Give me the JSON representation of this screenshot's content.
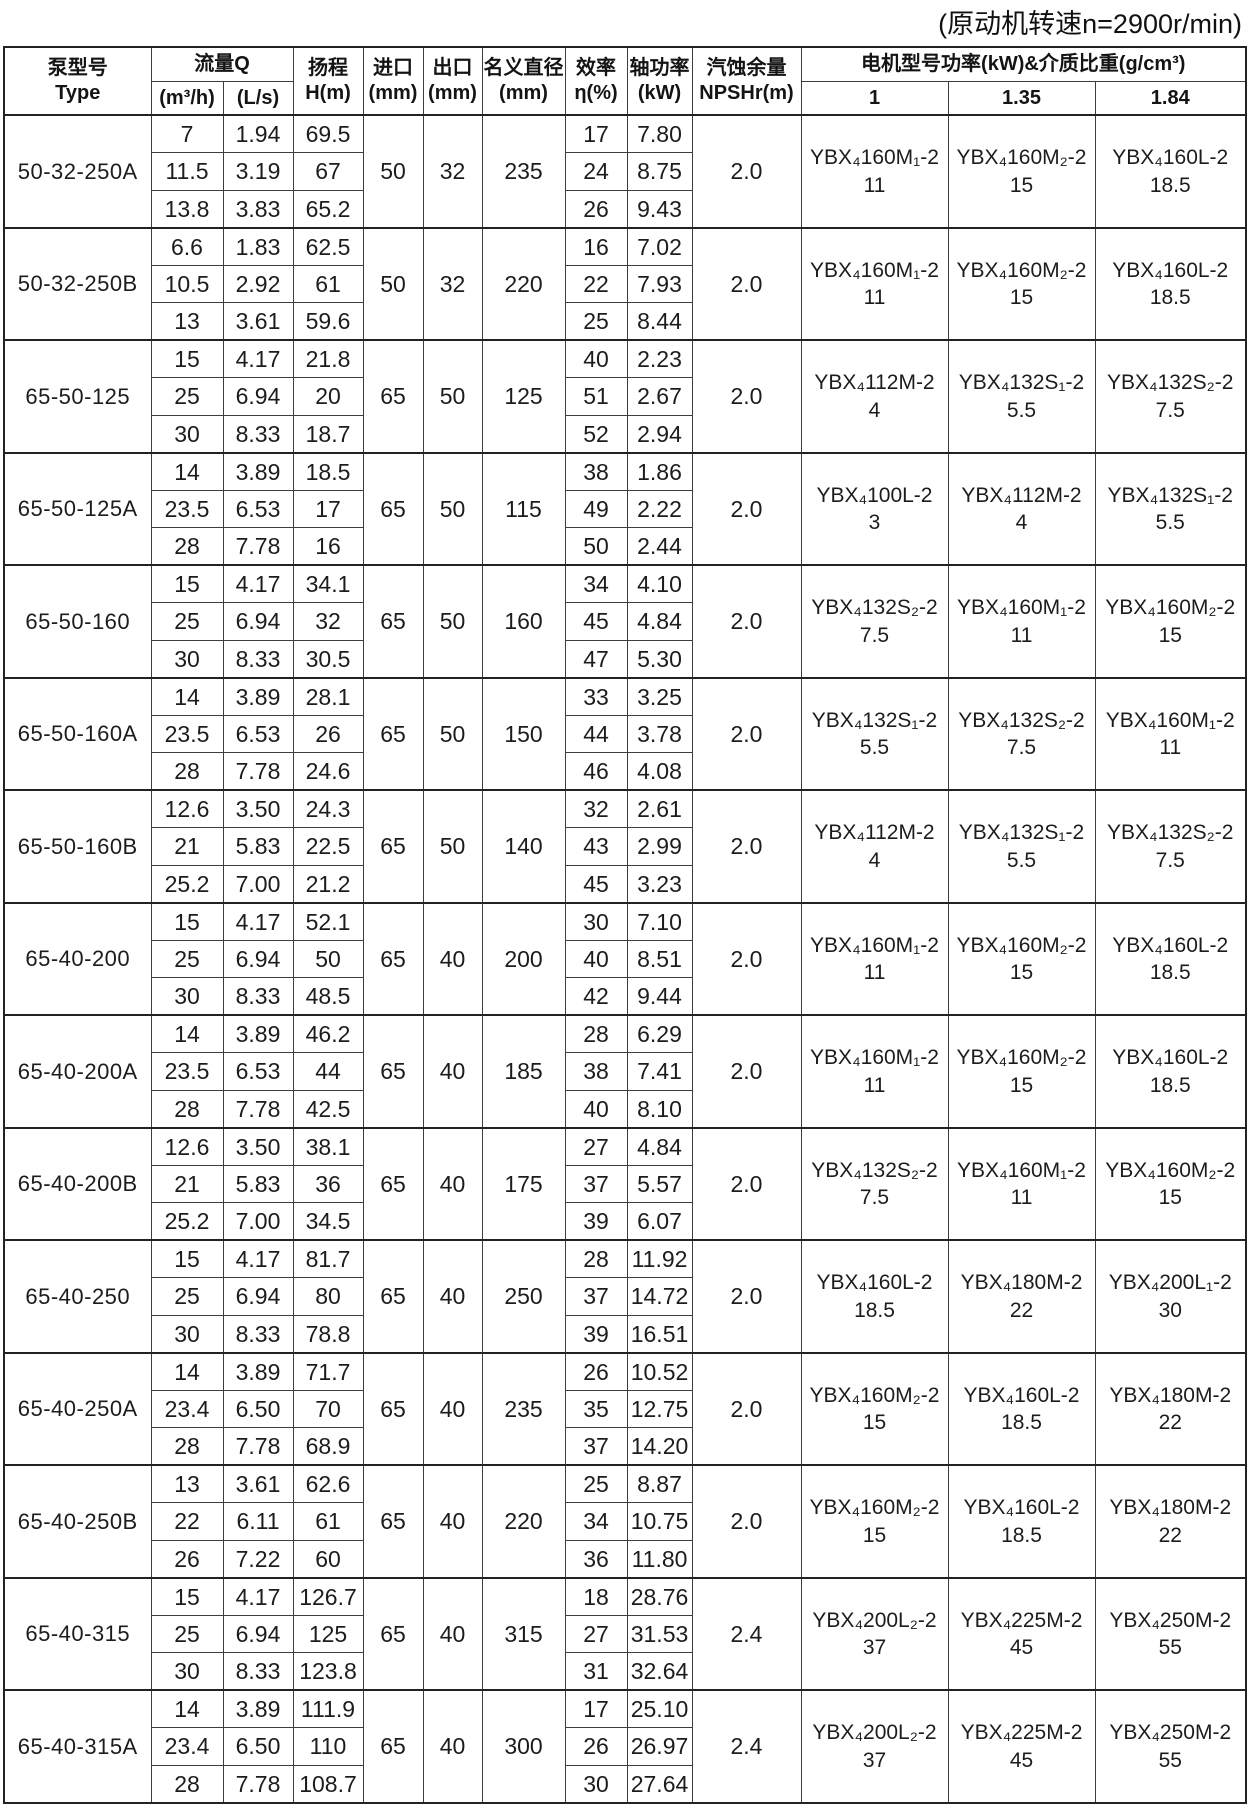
{
  "annotation": "(原动机转速n=2900r/min)",
  "header": {
    "pump_type": "泵型号\nType",
    "flow": {
      "label": "流量Q",
      "unit_m3h": "(m³/h)",
      "unit_ls": "(L/s)"
    },
    "head": "扬程\nH(m)",
    "inlet": "进口\n(mm)",
    "outlet": "出口\n(mm)",
    "nominal_diameter": "名义直径\n(mm)",
    "efficiency": "效率\nη(%)",
    "shaft_power": "轴功率\n(kW)",
    "npsh": "汽蚀余量\nNPSHr(m)",
    "motor": {
      "label": "电机型号功率(kW)&介质比重(g/cm³)",
      "gravity_1": "1",
      "gravity_135": "1.35",
      "gravity_184": "1.84"
    }
  },
  "colors": {
    "background": "#ffffff",
    "text": "#1c1c1c",
    "grid_line": "#3d3d3d",
    "heavy_line": "#222222"
  },
  "groups": [
    {
      "model": "50-32-250A",
      "inlet": "50",
      "outlet": "32",
      "diameter": "235",
      "npshr": "2.0",
      "rows": [
        {
          "m3h": "7",
          "ls": "1.94",
          "h": "69.5",
          "eff": "17",
          "kw": "7.80"
        },
        {
          "m3h": "11.5",
          "ls": "3.19",
          "h": "67",
          "eff": "24",
          "kw": "8.75"
        },
        {
          "m3h": "13.8",
          "ls": "3.83",
          "h": "65.2",
          "eff": "26",
          "kw": "9.43"
        }
      ],
      "motors": [
        {
          "model": "YBX₄160M₁-2",
          "power": "11"
        },
        {
          "model": "YBX₄160M₂-2",
          "power": "15"
        },
        {
          "model": "YBX₄160L-2",
          "power": "18.5"
        }
      ]
    },
    {
      "model": "50-32-250B",
      "inlet": "50",
      "outlet": "32",
      "diameter": "220",
      "npshr": "2.0",
      "rows": [
        {
          "m3h": "6.6",
          "ls": "1.83",
          "h": "62.5",
          "eff": "16",
          "kw": "7.02"
        },
        {
          "m3h": "10.5",
          "ls": "2.92",
          "h": "61",
          "eff": "22",
          "kw": "7.93"
        },
        {
          "m3h": "13",
          "ls": "3.61",
          "h": "59.6",
          "eff": "25",
          "kw": "8.44"
        }
      ],
      "motors": [
        {
          "model": "YBX₄160M₁-2",
          "power": "11"
        },
        {
          "model": "YBX₄160M₂-2",
          "power": "15"
        },
        {
          "model": "YBX₄160L-2",
          "power": "18.5"
        }
      ]
    },
    {
      "model": "65-50-125",
      "inlet": "65",
      "outlet": "50",
      "diameter": "125",
      "npshr": "2.0",
      "rows": [
        {
          "m3h": "15",
          "ls": "4.17",
          "h": "21.8",
          "eff": "40",
          "kw": "2.23"
        },
        {
          "m3h": "25",
          "ls": "6.94",
          "h": "20",
          "eff": "51",
          "kw": "2.67"
        },
        {
          "m3h": "30",
          "ls": "8.33",
          "h": "18.7",
          "eff": "52",
          "kw": "2.94"
        }
      ],
      "motors": [
        {
          "model": "YBX₄112M-2",
          "power": "4"
        },
        {
          "model": "YBX₄132S₁-2",
          "power": "5.5"
        },
        {
          "model": "YBX₄132S₂-2",
          "power": "7.5"
        }
      ]
    },
    {
      "model": "65-50-125A",
      "inlet": "65",
      "outlet": "50",
      "diameter": "115",
      "npshr": "2.0",
      "rows": [
        {
          "m3h": "14",
          "ls": "3.89",
          "h": "18.5",
          "eff": "38",
          "kw": "1.86"
        },
        {
          "m3h": "23.5",
          "ls": "6.53",
          "h": "17",
          "eff": "49",
          "kw": "2.22"
        },
        {
          "m3h": "28",
          "ls": "7.78",
          "h": "16",
          "eff": "50",
          "kw": "2.44"
        }
      ],
      "motors": [
        {
          "model": "YBX₄100L-2",
          "power": "3"
        },
        {
          "model": "YBX₄112M-2",
          "power": "4"
        },
        {
          "model": "YBX₄132S₁-2",
          "power": "5.5"
        }
      ]
    },
    {
      "model": "65-50-160",
      "inlet": "65",
      "outlet": "50",
      "diameter": "160",
      "npshr": "2.0",
      "rows": [
        {
          "m3h": "15",
          "ls": "4.17",
          "h": "34.1",
          "eff": "34",
          "kw": "4.10"
        },
        {
          "m3h": "25",
          "ls": "6.94",
          "h": "32",
          "eff": "45",
          "kw": "4.84"
        },
        {
          "m3h": "30",
          "ls": "8.33",
          "h": "30.5",
          "eff": "47",
          "kw": "5.30"
        }
      ],
      "motors": [
        {
          "model": "YBX₄132S₂-2",
          "power": "7.5"
        },
        {
          "model": "YBX₄160M₁-2",
          "power": "11"
        },
        {
          "model": "YBX₄160M₂-2",
          "power": "15"
        }
      ]
    },
    {
      "model": "65-50-160A",
      "inlet": "65",
      "outlet": "50",
      "diameter": "150",
      "npshr": "2.0",
      "rows": [
        {
          "m3h": "14",
          "ls": "3.89",
          "h": "28.1",
          "eff": "33",
          "kw": "3.25"
        },
        {
          "m3h": "23.5",
          "ls": "6.53",
          "h": "26",
          "eff": "44",
          "kw": "3.78"
        },
        {
          "m3h": "28",
          "ls": "7.78",
          "h": "24.6",
          "eff": "46",
          "kw": "4.08"
        }
      ],
      "motors": [
        {
          "model": "YBX₄132S₁-2",
          "power": "5.5"
        },
        {
          "model": "YBX₄132S₂-2",
          "power": "7.5"
        },
        {
          "model": "YBX₄160M₁-2",
          "power": "11"
        }
      ]
    },
    {
      "model": "65-50-160B",
      "inlet": "65",
      "outlet": "50",
      "diameter": "140",
      "npshr": "2.0",
      "rows": [
        {
          "m3h": "12.6",
          "ls": "3.50",
          "h": "24.3",
          "eff": "32",
          "kw": "2.61"
        },
        {
          "m3h": "21",
          "ls": "5.83",
          "h": "22.5",
          "eff": "43",
          "kw": "2.99"
        },
        {
          "m3h": "25.2",
          "ls": "7.00",
          "h": "21.2",
          "eff": "45",
          "kw": "3.23"
        }
      ],
      "motors": [
        {
          "model": "YBX₄112M-2",
          "power": "4"
        },
        {
          "model": "YBX₄132S₁-2",
          "power": "5.5"
        },
        {
          "model": "YBX₄132S₂-2",
          "power": "7.5"
        }
      ]
    },
    {
      "model": "65-40-200",
      "inlet": "65",
      "outlet": "40",
      "diameter": "200",
      "npshr": "2.0",
      "rows": [
        {
          "m3h": "15",
          "ls": "4.17",
          "h": "52.1",
          "eff": "30",
          "kw": "7.10"
        },
        {
          "m3h": "25",
          "ls": "6.94",
          "h": "50",
          "eff": "40",
          "kw": "8.51"
        },
        {
          "m3h": "30",
          "ls": "8.33",
          "h": "48.5",
          "eff": "42",
          "kw": "9.44"
        }
      ],
      "motors": [
        {
          "model": "YBX₄160M₁-2",
          "power": "11"
        },
        {
          "model": "YBX₄160M₂-2",
          "power": "15"
        },
        {
          "model": "YBX₄160L-2",
          "power": "18.5"
        }
      ]
    },
    {
      "model": "65-40-200A",
      "inlet": "65",
      "outlet": "40",
      "diameter": "185",
      "npshr": "2.0",
      "rows": [
        {
          "m3h": "14",
          "ls": "3.89",
          "h": "46.2",
          "eff": "28",
          "kw": "6.29"
        },
        {
          "m3h": "23.5",
          "ls": "6.53",
          "h": "44",
          "eff": "38",
          "kw": "7.41"
        },
        {
          "m3h": "28",
          "ls": "7.78",
          "h": "42.5",
          "eff": "40",
          "kw": "8.10"
        }
      ],
      "motors": [
        {
          "model": "YBX₄160M₁-2",
          "power": "11"
        },
        {
          "model": "YBX₄160M₂-2",
          "power": "15"
        },
        {
          "model": "YBX₄160L-2",
          "power": "18.5"
        }
      ]
    },
    {
      "model": "65-40-200B",
      "inlet": "65",
      "outlet": "40",
      "diameter": "175",
      "npshr": "2.0",
      "rows": [
        {
          "m3h": "12.6",
          "ls": "3.50",
          "h": "38.1",
          "eff": "27",
          "kw": "4.84"
        },
        {
          "m3h": "21",
          "ls": "5.83",
          "h": "36",
          "eff": "37",
          "kw": "5.57"
        },
        {
          "m3h": "25.2",
          "ls": "7.00",
          "h": "34.5",
          "eff": "39",
          "kw": "6.07"
        }
      ],
      "motors": [
        {
          "model": "YBX₄132S₂-2",
          "power": "7.5"
        },
        {
          "model": "YBX₄160M₁-2",
          "power": "11"
        },
        {
          "model": "YBX₄160M₂-2",
          "power": "15"
        }
      ]
    },
    {
      "model": "65-40-250",
      "inlet": "65",
      "outlet": "40",
      "diameter": "250",
      "npshr": "2.0",
      "rows": [
        {
          "m3h": "15",
          "ls": "4.17",
          "h": "81.7",
          "eff": "28",
          "kw": "11.92"
        },
        {
          "m3h": "25",
          "ls": "6.94",
          "h": "80",
          "eff": "37",
          "kw": "14.72"
        },
        {
          "m3h": "30",
          "ls": "8.33",
          "h": "78.8",
          "eff": "39",
          "kw": "16.51"
        }
      ],
      "motors": [
        {
          "model": "YBX₄160L-2",
          "power": "18.5"
        },
        {
          "model": "YBX₄180M-2",
          "power": "22"
        },
        {
          "model": "YBX₄200L₁-2",
          "power": "30"
        }
      ]
    },
    {
      "model": "65-40-250A",
      "inlet": "65",
      "outlet": "40",
      "diameter": "235",
      "npshr": "2.0",
      "rows": [
        {
          "m3h": "14",
          "ls": "3.89",
          "h": "71.7",
          "eff": "26",
          "kw": "10.52"
        },
        {
          "m3h": "23.4",
          "ls": "6.50",
          "h": "70",
          "eff": "35",
          "kw": "12.75"
        },
        {
          "m3h": "28",
          "ls": "7.78",
          "h": "68.9",
          "eff": "37",
          "kw": "14.20"
        }
      ],
      "motors": [
        {
          "model": "YBX₄160M₂-2",
          "power": "15"
        },
        {
          "model": "YBX₄160L-2",
          "power": "18.5"
        },
        {
          "model": "YBX₄180M-2",
          "power": "22"
        }
      ]
    },
    {
      "model": "65-40-250B",
      "inlet": "65",
      "outlet": "40",
      "diameter": "220",
      "npshr": "2.0",
      "rows": [
        {
          "m3h": "13",
          "ls": "3.61",
          "h": "62.6",
          "eff": "25",
          "kw": "8.87"
        },
        {
          "m3h": "22",
          "ls": "6.11",
          "h": "61",
          "eff": "34",
          "kw": "10.75"
        },
        {
          "m3h": "26",
          "ls": "7.22",
          "h": "60",
          "eff": "36",
          "kw": "11.80"
        }
      ],
      "motors": [
        {
          "model": "YBX₄160M₂-2",
          "power": "15"
        },
        {
          "model": "YBX₄160L-2",
          "power": "18.5"
        },
        {
          "model": "YBX₄180M-2",
          "power": "22"
        }
      ]
    },
    {
      "model": "65-40-315",
      "inlet": "65",
      "outlet": "40",
      "diameter": "315",
      "npshr": "2.4",
      "rows": [
        {
          "m3h": "15",
          "ls": "4.17",
          "h": "126.7",
          "eff": "18",
          "kw": "28.76"
        },
        {
          "m3h": "25",
          "ls": "6.94",
          "h": "125",
          "eff": "27",
          "kw": "31.53"
        },
        {
          "m3h": "30",
          "ls": "8.33",
          "h": "123.8",
          "eff": "31",
          "kw": "32.64"
        }
      ],
      "motors": [
        {
          "model": "YBX₄200L₂-2",
          "power": "37"
        },
        {
          "model": "YBX₄225M-2",
          "power": "45"
        },
        {
          "model": "YBX₄250M-2",
          "power": "55"
        }
      ]
    },
    {
      "model": "65-40-315A",
      "inlet": "65",
      "outlet": "40",
      "diameter": "300",
      "npshr": "2.4",
      "rows": [
        {
          "m3h": "14",
          "ls": "3.89",
          "h": "111.9",
          "eff": "17",
          "kw": "25.10"
        },
        {
          "m3h": "23.4",
          "ls": "6.50",
          "h": "110",
          "eff": "26",
          "kw": "26.97"
        },
        {
          "m3h": "28",
          "ls": "7.78",
          "h": "108.7",
          "eff": "30",
          "kw": "27.64"
        }
      ],
      "motors": [
        {
          "model": "YBX₄200L₂-2",
          "power": "37"
        },
        {
          "model": "YBX₄225M-2",
          "power": "45"
        },
        {
          "model": "YBX₄250M-2",
          "power": "55"
        }
      ]
    }
  ]
}
